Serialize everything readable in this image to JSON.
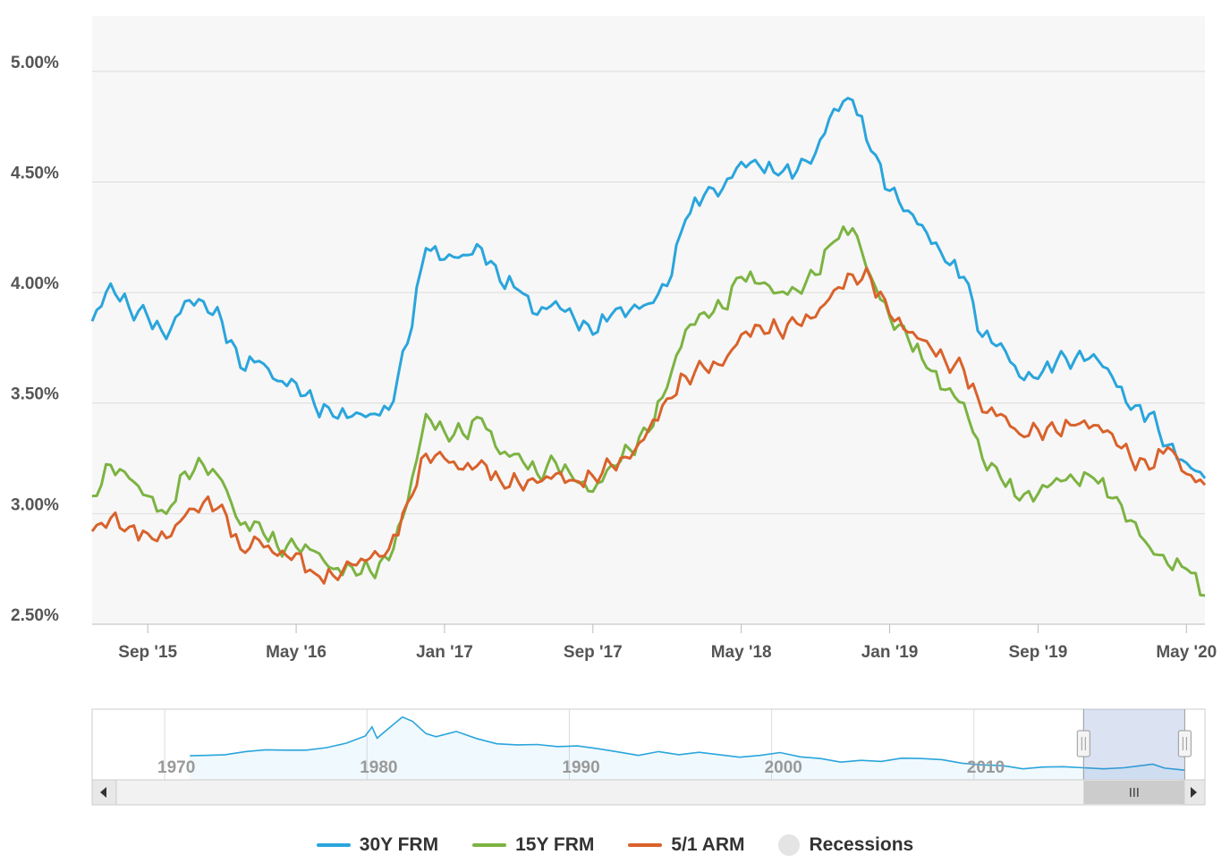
{
  "chart_data": {
    "type": "line",
    "title": "",
    "xlabel": "",
    "ylabel": "",
    "x_range": [
      "2015-06",
      "2020-06"
    ],
    "ylim": [
      2.5,
      5.25
    ],
    "y_ticks": [
      2.5,
      3.0,
      3.5,
      4.0,
      4.5,
      5.0
    ],
    "y_tick_labels": [
      "2.50%",
      "3.00%",
      "3.50%",
      "4.00%",
      "4.50%",
      "5.00%"
    ],
    "x_tick_labels": [
      "Sep '15",
      "May '16",
      "Jan '17",
      "Sep '17",
      "May '18",
      "Jan '19",
      "Sep '19",
      "May '20"
    ],
    "grid": true,
    "legend_position": "bottom",
    "series": [
      {
        "name": "30Y FRM",
        "color": "#2aa5dc",
        "points": [
          [
            "2015-06",
            3.87
          ],
          [
            "2015-07",
            4.04
          ],
          [
            "2015-08",
            3.93
          ],
          [
            "2015-09",
            3.89
          ],
          [
            "2015-10",
            3.79
          ],
          [
            "2015-11",
            3.96
          ],
          [
            "2015-12",
            3.96
          ],
          [
            "2016-01",
            3.87
          ],
          [
            "2016-02",
            3.66
          ],
          [
            "2016-03",
            3.69
          ],
          [
            "2016-04",
            3.6
          ],
          [
            "2016-05",
            3.59
          ],
          [
            "2016-06",
            3.49
          ],
          [
            "2016-07",
            3.44
          ],
          [
            "2016-08",
            3.44
          ],
          [
            "2016-09",
            3.45
          ],
          [
            "2016-10",
            3.47
          ],
          [
            "2016-11",
            3.77
          ],
          [
            "2016-12",
            4.2
          ],
          [
            "2017-01",
            4.15
          ],
          [
            "2017-02",
            4.17
          ],
          [
            "2017-03",
            4.2
          ],
          [
            "2017-04",
            4.05
          ],
          [
            "2017-05",
            4.01
          ],
          [
            "2017-06",
            3.9
          ],
          [
            "2017-07",
            3.96
          ],
          [
            "2017-08",
            3.88
          ],
          [
            "2017-09",
            3.81
          ],
          [
            "2017-10",
            3.9
          ],
          [
            "2017-11",
            3.92
          ],
          [
            "2017-12",
            3.95
          ],
          [
            "2018-01",
            4.03
          ],
          [
            "2018-02",
            4.33
          ],
          [
            "2018-03",
            4.44
          ],
          [
            "2018-04",
            4.47
          ],
          [
            "2018-05",
            4.59
          ],
          [
            "2018-06",
            4.57
          ],
          [
            "2018-07",
            4.53
          ],
          [
            "2018-08",
            4.55
          ],
          [
            "2018-09",
            4.63
          ],
          [
            "2018-10",
            4.83
          ],
          [
            "2018-11",
            4.87
          ],
          [
            "2018-12",
            4.64
          ],
          [
            "2019-01",
            4.46
          ],
          [
            "2019-02",
            4.37
          ],
          [
            "2019-03",
            4.27
          ],
          [
            "2019-04",
            4.14
          ],
          [
            "2019-05",
            4.07
          ],
          [
            "2019-06",
            3.8
          ],
          [
            "2019-07",
            3.77
          ],
          [
            "2019-08",
            3.62
          ],
          [
            "2019-09",
            3.61
          ],
          [
            "2019-10",
            3.69
          ],
          [
            "2019-11",
            3.7
          ],
          [
            "2019-12",
            3.72
          ],
          [
            "2020-01",
            3.62
          ],
          [
            "2020-02",
            3.47
          ],
          [
            "2020-03",
            3.45
          ],
          [
            "2020-04",
            3.31
          ],
          [
            "2020-05",
            3.23
          ],
          [
            "2020-06",
            3.16
          ]
        ]
      },
      {
        "name": "15Y FRM",
        "color": "#7cb342",
        "points": [
          [
            "2015-06",
            3.08
          ],
          [
            "2015-07",
            3.22
          ],
          [
            "2015-08",
            3.16
          ],
          [
            "2015-09",
            3.08
          ],
          [
            "2015-10",
            3.0
          ],
          [
            "2015-11",
            3.19
          ],
          [
            "2015-12",
            3.22
          ],
          [
            "2016-01",
            3.15
          ],
          [
            "2016-02",
            2.95
          ],
          [
            "2016-03",
            2.96
          ],
          [
            "2016-04",
            2.85
          ],
          [
            "2016-05",
            2.85
          ],
          [
            "2016-06",
            2.83
          ],
          [
            "2016-07",
            2.75
          ],
          [
            "2016-08",
            2.76
          ],
          [
            "2016-09",
            2.74
          ],
          [
            "2016-10",
            2.79
          ],
          [
            "2016-11",
            3.05
          ],
          [
            "2016-12",
            3.45
          ],
          [
            "2017-01",
            3.37
          ],
          [
            "2017-02",
            3.36
          ],
          [
            "2017-03",
            3.43
          ],
          [
            "2017-04",
            3.27
          ],
          [
            "2017-05",
            3.27
          ],
          [
            "2017-06",
            3.18
          ],
          [
            "2017-07",
            3.23
          ],
          [
            "2017-08",
            3.15
          ],
          [
            "2017-09",
            3.1
          ],
          [
            "2017-10",
            3.22
          ],
          [
            "2017-11",
            3.29
          ],
          [
            "2017-12",
            3.37
          ],
          [
            "2018-01",
            3.57
          ],
          [
            "2018-02",
            3.83
          ],
          [
            "2018-03",
            3.91
          ],
          [
            "2018-04",
            3.93
          ],
          [
            "2018-05",
            4.07
          ],
          [
            "2018-06",
            4.04
          ],
          [
            "2018-07",
            4.0
          ],
          [
            "2018-08",
            4.01
          ],
          [
            "2018-09",
            4.08
          ],
          [
            "2018-10",
            4.23
          ],
          [
            "2018-11",
            4.29
          ],
          [
            "2018-12",
            4.07
          ],
          [
            "2019-01",
            3.89
          ],
          [
            "2019-02",
            3.79
          ],
          [
            "2019-03",
            3.66
          ],
          [
            "2019-04",
            3.56
          ],
          [
            "2019-05",
            3.5
          ],
          [
            "2019-06",
            3.25
          ],
          [
            "2019-07",
            3.16
          ],
          [
            "2019-08",
            3.06
          ],
          [
            "2019-09",
            3.09
          ],
          [
            "2019-10",
            3.16
          ],
          [
            "2019-11",
            3.15
          ],
          [
            "2019-12",
            3.16
          ],
          [
            "2020-01",
            3.07
          ],
          [
            "2020-02",
            2.97
          ],
          [
            "2020-03",
            2.85
          ],
          [
            "2020-04",
            2.77
          ],
          [
            "2020-05",
            2.75
          ],
          [
            "2020-06",
            2.63
          ]
        ]
      },
      {
        "name": "5/1 ARM",
        "color": "#d9622b",
        "points": [
          [
            "2015-06",
            2.92
          ],
          [
            "2015-07",
            2.98
          ],
          [
            "2015-08",
            2.94
          ],
          [
            "2015-09",
            2.91
          ],
          [
            "2015-10",
            2.89
          ],
          [
            "2015-11",
            2.99
          ],
          [
            "2015-12",
            3.05
          ],
          [
            "2016-01",
            3.04
          ],
          [
            "2016-02",
            2.84
          ],
          [
            "2016-03",
            2.88
          ],
          [
            "2016-04",
            2.81
          ],
          [
            "2016-05",
            2.82
          ],
          [
            "2016-06",
            2.73
          ],
          [
            "2016-07",
            2.72
          ],
          [
            "2016-08",
            2.77
          ],
          [
            "2016-09",
            2.8
          ],
          [
            "2016-10",
            2.84
          ],
          [
            "2016-11",
            3.05
          ],
          [
            "2016-12",
            3.27
          ],
          [
            "2017-01",
            3.25
          ],
          [
            "2017-02",
            3.2
          ],
          [
            "2017-03",
            3.24
          ],
          [
            "2017-04",
            3.15
          ],
          [
            "2017-05",
            3.14
          ],
          [
            "2017-06",
            3.14
          ],
          [
            "2017-07",
            3.18
          ],
          [
            "2017-08",
            3.15
          ],
          [
            "2017-09",
            3.17
          ],
          [
            "2017-10",
            3.22
          ],
          [
            "2017-11",
            3.25
          ],
          [
            "2017-12",
            3.38
          ],
          [
            "2018-01",
            3.52
          ],
          [
            "2018-02",
            3.62
          ],
          [
            "2018-03",
            3.66
          ],
          [
            "2018-04",
            3.67
          ],
          [
            "2018-05",
            3.81
          ],
          [
            "2018-06",
            3.85
          ],
          [
            "2018-07",
            3.83
          ],
          [
            "2018-08",
            3.86
          ],
          [
            "2018-09",
            3.89
          ],
          [
            "2018-10",
            4.01
          ],
          [
            "2018-11",
            4.08
          ],
          [
            "2018-12",
            4.06
          ],
          [
            "2019-01",
            3.9
          ],
          [
            "2019-02",
            3.82
          ],
          [
            "2019-03",
            3.78
          ],
          [
            "2019-04",
            3.69
          ],
          [
            "2019-05",
            3.65
          ],
          [
            "2019-06",
            3.46
          ],
          [
            "2019-07",
            3.45
          ],
          [
            "2019-08",
            3.36
          ],
          [
            "2019-09",
            3.38
          ],
          [
            "2019-10",
            3.37
          ],
          [
            "2019-11",
            3.4
          ],
          [
            "2019-12",
            3.4
          ],
          [
            "2020-01",
            3.36
          ],
          [
            "2020-02",
            3.25
          ],
          [
            "2020-03",
            3.2
          ],
          [
            "2020-04",
            3.3
          ],
          [
            "2020-05",
            3.18
          ],
          [
            "2020-06",
            3.13
          ]
        ]
      }
    ]
  },
  "navigator": {
    "x_range": [
      "1966-06",
      "2021-06"
    ],
    "selected_range": [
      "2015-06",
      "2020-06"
    ],
    "year_labels": [
      "1970",
      "1980",
      "1990",
      "2000",
      "2010"
    ],
    "color": "#2aa5dc",
    "series_name": "30Y FRM",
    "points": [
      [
        "1971-04",
        7.3
      ],
      [
        "1972-01",
        7.4
      ],
      [
        "1973-01",
        7.6
      ],
      [
        "1974-01",
        8.5
      ],
      [
        "1975-01",
        9.0
      ],
      [
        "1976-01",
        8.9
      ],
      [
        "1977-01",
        8.9
      ],
      [
        "1978-01",
        9.6
      ],
      [
        "1979-01",
        10.9
      ],
      [
        "1979-12",
        12.9
      ],
      [
        "1980-04",
        15.5
      ],
      [
        "1980-07",
        12.3
      ],
      [
        "1981-01",
        14.7
      ],
      [
        "1981-10",
        18.3
      ],
      [
        "1982-04",
        17.1
      ],
      [
        "1982-12",
        13.6
      ],
      [
        "1983-06",
        12.7
      ],
      [
        "1984-06",
        14.2
      ],
      [
        "1985-06",
        12.2
      ],
      [
        "1986-06",
        10.7
      ],
      [
        "1987-06",
        10.4
      ],
      [
        "1988-06",
        10.5
      ],
      [
        "1989-06",
        9.9
      ],
      [
        "1990-06",
        10.1
      ],
      [
        "1991-06",
        9.3
      ],
      [
        "1992-06",
        8.4
      ],
      [
        "1993-06",
        7.4
      ],
      [
        "1994-06",
        8.5
      ],
      [
        "1995-06",
        7.6
      ],
      [
        "1996-06",
        8.3
      ],
      [
        "1997-06",
        7.6
      ],
      [
        "1998-06",
        6.9
      ],
      [
        "1999-06",
        7.4
      ],
      [
        "2000-06",
        8.2
      ],
      [
        "2001-06",
        7.0
      ],
      [
        "2002-06",
        6.5
      ],
      [
        "2003-06",
        5.5
      ],
      [
        "2004-06",
        6.0
      ],
      [
        "2005-06",
        5.7
      ],
      [
        "2006-06",
        6.6
      ],
      [
        "2007-06",
        6.5
      ],
      [
        "2008-06",
        6.2
      ],
      [
        "2009-06",
        5.2
      ],
      [
        "2010-06",
        4.7
      ],
      [
        "2011-06",
        4.5
      ],
      [
        "2012-06",
        3.6
      ],
      [
        "2013-06",
        4.1
      ],
      [
        "2014-06",
        4.2
      ],
      [
        "2015-06",
        3.9
      ],
      [
        "2016-06",
        3.6
      ],
      [
        "2017-06",
        3.9
      ],
      [
        "2018-06",
        4.6
      ],
      [
        "2018-11",
        4.9
      ],
      [
        "2019-06",
        3.8
      ],
      [
        "2020-06",
        3.2
      ]
    ]
  },
  "legend": {
    "items": [
      {
        "label": "30Y FRM",
        "color": "#2aa5dc"
      },
      {
        "label": "15Y FRM",
        "color": "#7cb342"
      },
      {
        "label": "5/1 ARM",
        "color": "#d9622b"
      },
      {
        "label": "Recessions",
        "color": "#e4e4e4"
      }
    ]
  },
  "scrollbar": {
    "left_arrow_icon": "chevron-left-icon",
    "right_arrow_icon": "chevron-right-icon",
    "grip_icon": "grip-lines-icon"
  }
}
